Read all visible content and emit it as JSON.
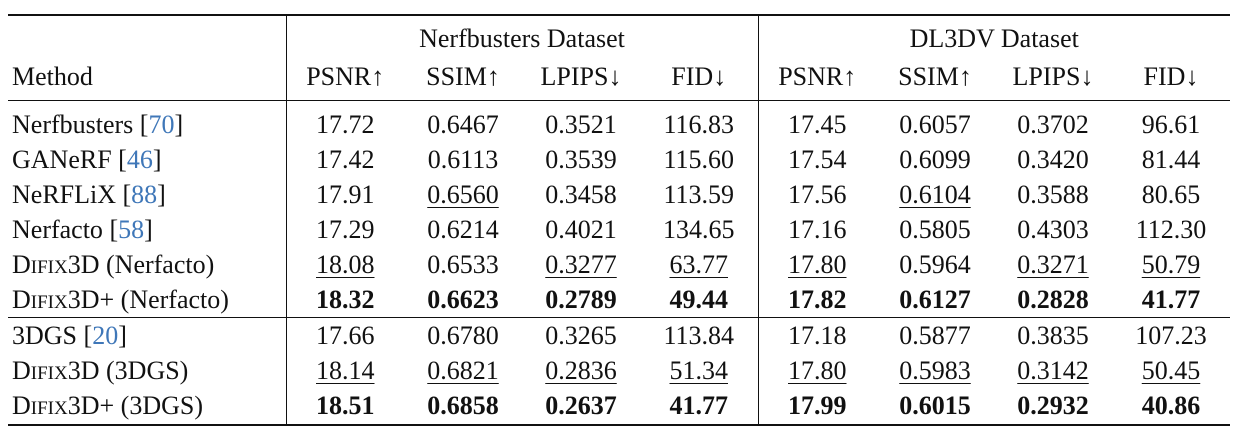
{
  "headers": {
    "group_nerfbusters": "Nerfbusters Dataset",
    "group_dl3dv": "DL3DV Dataset",
    "method": "Method",
    "psnr": "PSNR↑",
    "ssim": "SSIM↑",
    "lpips": "LPIPS↓",
    "fid": "FID↓"
  },
  "rows": [
    {
      "method": "Nerfbusters",
      "ref": "70",
      "cells": [
        {
          "v": "17.72",
          "s": ""
        },
        {
          "v": "0.6467",
          "s": ""
        },
        {
          "v": "0.3521",
          "s": ""
        },
        {
          "v": "116.83",
          "s": ""
        },
        {
          "v": "17.45",
          "s": ""
        },
        {
          "v": "0.6057",
          "s": ""
        },
        {
          "v": "0.3702",
          "s": ""
        },
        {
          "v": "96.61",
          "s": ""
        }
      ]
    },
    {
      "method": "GANeRF",
      "ref": "46",
      "cells": [
        {
          "v": "17.42",
          "s": ""
        },
        {
          "v": "0.6113",
          "s": ""
        },
        {
          "v": "0.3539",
          "s": ""
        },
        {
          "v": "115.60",
          "s": ""
        },
        {
          "v": "17.54",
          "s": ""
        },
        {
          "v": "0.6099",
          "s": ""
        },
        {
          "v": "0.3420",
          "s": ""
        },
        {
          "v": "81.44",
          "s": ""
        }
      ]
    },
    {
      "method": "NeRFLiX",
      "ref": "88",
      "cells": [
        {
          "v": "17.91",
          "s": ""
        },
        {
          "v": "0.6560",
          "s": "u"
        },
        {
          "v": "0.3458",
          "s": ""
        },
        {
          "v": "113.59",
          "s": ""
        },
        {
          "v": "17.56",
          "s": ""
        },
        {
          "v": "0.6104",
          "s": "u"
        },
        {
          "v": "0.3588",
          "s": ""
        },
        {
          "v": "80.65",
          "s": ""
        }
      ]
    },
    {
      "method": "Nerfacto",
      "ref": "58",
      "cells": [
        {
          "v": "17.29",
          "s": ""
        },
        {
          "v": "0.6214",
          "s": ""
        },
        {
          "v": "0.4021",
          "s": ""
        },
        {
          "v": "134.65",
          "s": ""
        },
        {
          "v": "17.16",
          "s": ""
        },
        {
          "v": "0.5805",
          "s": ""
        },
        {
          "v": "0.4303",
          "s": ""
        },
        {
          "v": "112.30",
          "s": ""
        }
      ]
    },
    {
      "method_sc": [
        "D",
        "IFIX",
        "3D (Nerfacto)"
      ],
      "cells": [
        {
          "v": "18.08",
          "s": "u"
        },
        {
          "v": "0.6533",
          "s": ""
        },
        {
          "v": "0.3277",
          "s": "u"
        },
        {
          "v": "63.77",
          "s": "u"
        },
        {
          "v": "17.80",
          "s": "u"
        },
        {
          "v": "0.5964",
          "s": ""
        },
        {
          "v": "0.3271",
          "s": "u"
        },
        {
          "v": "50.79",
          "s": "u"
        }
      ]
    },
    {
      "method_sc": [
        "D",
        "IFIX",
        "3D+ (Nerfacto)"
      ],
      "cells": [
        {
          "v": "18.32",
          "s": "b"
        },
        {
          "v": "0.6623",
          "s": "b"
        },
        {
          "v": "0.2789",
          "s": "b"
        },
        {
          "v": "49.44",
          "s": "b"
        },
        {
          "v": "17.82",
          "s": "b"
        },
        {
          "v": "0.6127",
          "s": "b"
        },
        {
          "v": "0.2828",
          "s": "b"
        },
        {
          "v": "41.77",
          "s": "b"
        }
      ]
    },
    {
      "method": "3DGS",
      "ref": "20",
      "section_start": true,
      "cells": [
        {
          "v": "17.66",
          "s": ""
        },
        {
          "v": "0.6780",
          "s": ""
        },
        {
          "v": "0.3265",
          "s": ""
        },
        {
          "v": "113.84",
          "s": ""
        },
        {
          "v": "17.18",
          "s": ""
        },
        {
          "v": "0.5877",
          "s": ""
        },
        {
          "v": "0.3835",
          "s": ""
        },
        {
          "v": "107.23",
          "s": ""
        }
      ]
    },
    {
      "method_sc": [
        "D",
        "IFIX",
        "3D (3DGS)"
      ],
      "cells": [
        {
          "v": "18.14",
          "s": "u"
        },
        {
          "v": "0.6821",
          "s": "u"
        },
        {
          "v": "0.2836",
          "s": "u"
        },
        {
          "v": "51.34",
          "s": "u"
        },
        {
          "v": "17.80",
          "s": "u"
        },
        {
          "v": "0.5983",
          "s": "u"
        },
        {
          "v": "0.3142",
          "s": "u"
        },
        {
          "v": "50.45",
          "s": "u"
        }
      ]
    },
    {
      "method_sc": [
        "D",
        "IFIX",
        "3D+ (3DGS)"
      ],
      "cells": [
        {
          "v": "18.51",
          "s": "b"
        },
        {
          "v": "0.6858",
          "s": "b"
        },
        {
          "v": "0.2637",
          "s": "b"
        },
        {
          "v": "41.77",
          "s": "b"
        },
        {
          "v": "17.99",
          "s": "b"
        },
        {
          "v": "0.6015",
          "s": "b"
        },
        {
          "v": "0.2932",
          "s": "b"
        },
        {
          "v": "40.86",
          "s": "b"
        }
      ]
    }
  ]
}
